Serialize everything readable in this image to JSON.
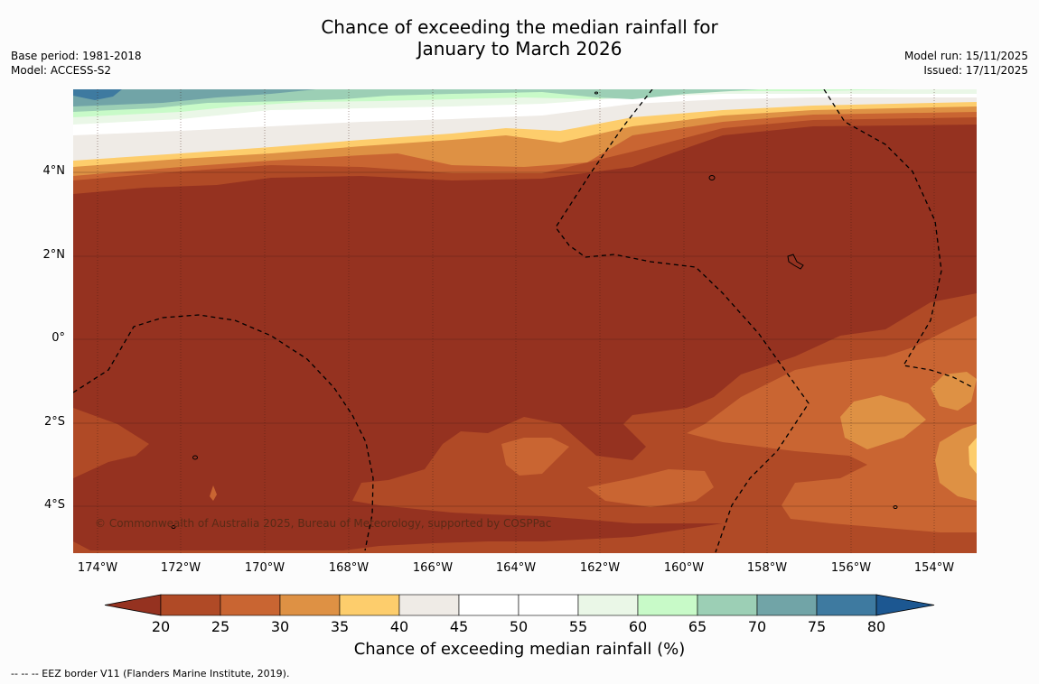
{
  "title_line1": "Chance of exceeding the median rainfall for",
  "title_line2": "January to March 2026",
  "base_period": "Base period: 1981-2018",
  "model": "Model: ACCESS-S2",
  "model_run": "Model run: 15/11/2025",
  "issued": "Issued: 17/11/2025",
  "copyright": "© Commonwealth of Australia 2025, Bureau of Meteorology, supported by COSPPac",
  "longitude_labels": [
    "174°W",
    "172°W",
    "170°W",
    "168°W",
    "166°W",
    "164°W",
    "162°W",
    "160°W",
    "158°W",
    "156°W",
    "154°W"
  ],
  "latitude_labels": [
    "4°N",
    "2°N",
    "0°",
    "2°S",
    "4°S"
  ],
  "colorbar": {
    "ticks": [
      "20",
      "25",
      "30",
      "35",
      "40",
      "45",
      "50",
      "55",
      "60",
      "65",
      "70",
      "75",
      "80"
    ],
    "colors": [
      "#953220",
      "#b04a26",
      "#c96532",
      "#de9144",
      "#fdcd6c",
      "#efebe6",
      "#ffffff",
      "#ffffff",
      "#eaf7e7",
      "#c8fac8",
      "#9ccfb5",
      "#71a4a7",
      "#3e7aa0",
      "#1c5791"
    ],
    "title": "Chance of exceeding median rainfall (%)"
  },
  "footnote": "--  --  -- EEZ border V11 (Flanders Marine Institute, 2019)."
}
